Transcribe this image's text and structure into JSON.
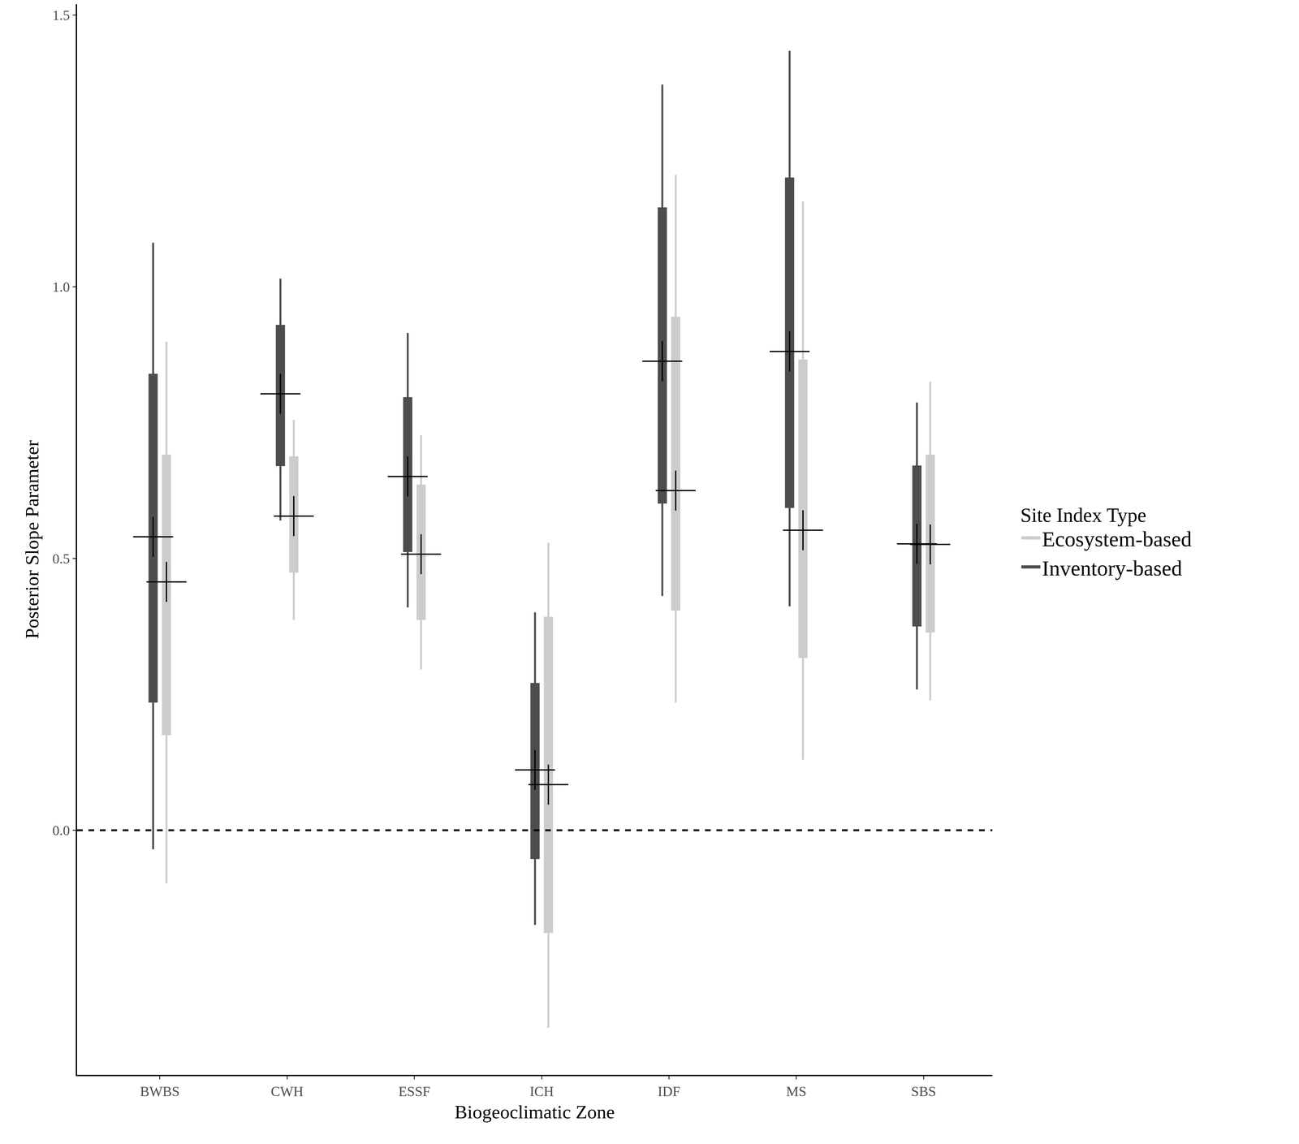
{
  "chart_data": {
    "type": "interval",
    "x_label": "Biogeoclimatic Zone",
    "y_label": "Posterior Slope Parameter",
    "categories": [
      "BWBS",
      "CWH",
      "ESSF",
      "ICH",
      "IDF",
      "MS",
      "SBS"
    ],
    "series": [
      {
        "name": "Ecosystem-based",
        "color": "#cccccc",
        "values": [
          0.457,
          0.578,
          0.508,
          0.084,
          0.625,
          0.552,
          0.526
        ],
        "inner_low": [
          0.175,
          0.474,
          0.387,
          -0.189,
          0.404,
          0.317,
          0.364
        ],
        "inner_high": [
          0.691,
          0.688,
          0.636,
          0.393,
          0.945,
          0.866,
          0.691
        ],
        "outer_low": [
          -0.098,
          0.387,
          0.296,
          -0.363,
          0.235,
          0.13,
          0.239
        ],
        "outer_high": [
          0.899,
          0.755,
          0.727,
          0.529,
          1.206,
          1.157,
          0.825
        ]
      },
      {
        "name": "Inventory-based",
        "color": "#4d4d4d",
        "values": [
          0.54,
          0.803,
          0.651,
          0.111,
          0.863,
          0.881,
          0.527
        ],
        "inner_low": [
          0.235,
          0.67,
          0.512,
          -0.053,
          0.601,
          0.593,
          0.375
        ],
        "inner_high": [
          0.84,
          0.93,
          0.797,
          0.271,
          1.146,
          1.201,
          0.671
        ],
        "outer_low": [
          -0.035,
          0.57,
          0.41,
          -0.174,
          0.431,
          0.412,
          0.259
        ],
        "outer_high": [
          1.081,
          1.015,
          0.915,
          0.401,
          1.372,
          1.434,
          0.787
        ]
      }
    ],
    "ylim": [
      -0.45,
      1.52
    ],
    "yticks": [
      {
        "value": 0,
        "label": "0.0"
      },
      {
        "value": 0.5,
        "label": "0.5"
      },
      {
        "value": 1,
        "label": "1.0"
      },
      {
        "value": 1.5,
        "label": "1.5"
      }
    ],
    "reference_line": 0,
    "legend": "right",
    "legend_title": "Site Index Type",
    "grid": false
  }
}
